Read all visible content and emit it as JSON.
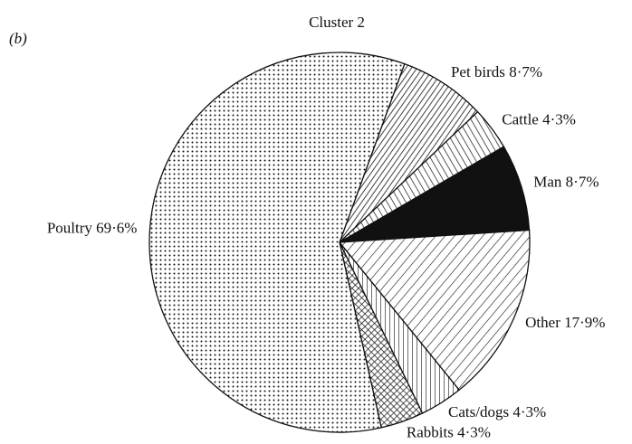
{
  "chart_data": {
    "type": "pie",
    "title": "Cluster 2",
    "annotation": "(b)",
    "categories": [
      "Pet birds",
      "Cattle",
      "Man",
      "Other",
      "Cats/dogs",
      "Rabbits",
      "Poultry"
    ],
    "values": [
      8.7,
      4.3,
      8.7,
      17.9,
      4.3,
      4.3,
      69.6
    ],
    "value_labels": [
      "8·7%",
      "4·3%",
      "8·7%",
      "17·9%",
      "4·3%",
      "4·3%",
      "69·6%"
    ],
    "patterns": [
      "hatch-right",
      "hatch-left",
      "solid",
      "hatch-right-wide",
      "vertical",
      "crosshatch",
      "dots"
    ],
    "color": "#111111"
  }
}
